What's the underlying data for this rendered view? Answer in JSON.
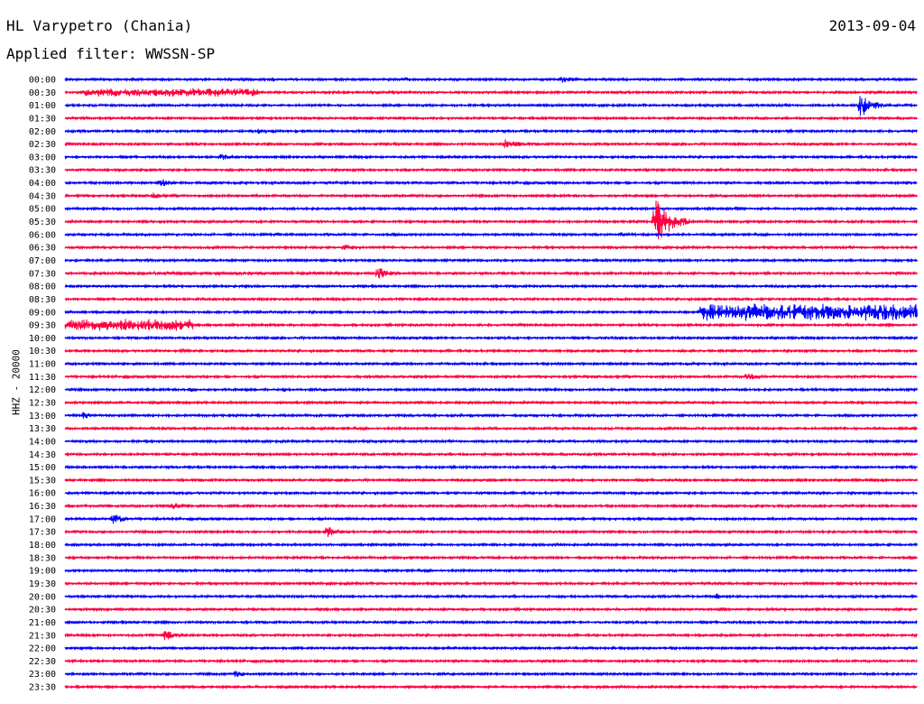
{
  "header": {
    "station": "HL Varypetro (Chania)",
    "date": "2013-09-04",
    "filter": "Applied filter: WWSSN-SP"
  },
  "axis": {
    "channel_label": "HHZ - 20000"
  },
  "colors": {
    "odd_trace": "#0000ff",
    "even_trace": "#ff0040",
    "background": "#ffffff",
    "text": "#000000"
  },
  "chart_data": {
    "type": "line",
    "chart_kind": "helicorder",
    "x_unit": "minutes within 30-minute row",
    "xlim": [
      0,
      30
    ],
    "row_labels": [
      "00:00",
      "00:30",
      "01:00",
      "01:30",
      "02:00",
      "02:30",
      "03:00",
      "03:30",
      "04:00",
      "04:30",
      "05:00",
      "05:30",
      "06:00",
      "06:30",
      "07:00",
      "07:30",
      "08:00",
      "08:30",
      "09:00",
      "09:30",
      "10:00",
      "10:30",
      "11:00",
      "11:30",
      "12:00",
      "12:30",
      "13:00",
      "13:30",
      "14:00",
      "14:30",
      "15:00",
      "15:30",
      "16:00",
      "16:30",
      "17:00",
      "17:30",
      "18:00",
      "18:30",
      "19:00",
      "19:30",
      "20:00",
      "20:30",
      "21:00",
      "21:30",
      "22:00",
      "22:30",
      "23:00",
      "23:30"
    ],
    "events": [
      {
        "row": "00:00",
        "minute": 12.0,
        "amp": 3,
        "dur": 0.6
      },
      {
        "row": "00:00",
        "minute": 17.5,
        "amp": 4,
        "dur": 1.2
      },
      {
        "row": "00:30",
        "minute": 0.8,
        "amp": 5,
        "dur": 6.0
      },
      {
        "row": "00:30",
        "minute": 11.5,
        "amp": 2,
        "dur": 0.8
      },
      {
        "row": "01:00",
        "minute": 28.0,
        "amp": 14,
        "dur": 1.0
      },
      {
        "row": "02:00",
        "minute": 6.8,
        "amp": 3,
        "dur": 1.0
      },
      {
        "row": "02:30",
        "minute": 15.5,
        "amp": 6,
        "dur": 1.2
      },
      {
        "row": "03:00",
        "minute": 5.5,
        "amp": 4,
        "dur": 0.8
      },
      {
        "row": "03:30",
        "minute": 20.5,
        "amp": 3,
        "dur": 0.5
      },
      {
        "row": "04:00",
        "minute": 3.4,
        "amp": 5,
        "dur": 0.8
      },
      {
        "row": "04:30",
        "minute": 3.1,
        "amp": 4,
        "dur": 0.8
      },
      {
        "row": "05:00",
        "minute": 23.7,
        "amp": 3,
        "dur": 0.6
      },
      {
        "row": "05:30",
        "minute": 20.8,
        "amp": 26,
        "dur": 1.2
      },
      {
        "row": "06:00",
        "minute": 19.6,
        "amp": 3,
        "dur": 0.8
      },
      {
        "row": "06:30",
        "minute": 9.8,
        "amp": 4,
        "dur": 1.2
      },
      {
        "row": "07:00",
        "minute": 9.5,
        "amp": 2,
        "dur": 0.8
      },
      {
        "row": "07:30",
        "minute": 11.0,
        "amp": 8,
        "dur": 0.9
      },
      {
        "row": "07:30",
        "minute": 1.0,
        "amp": 2,
        "dur": 9.0
      },
      {
        "row": "09:00",
        "minute": 22.5,
        "amp": 10,
        "dur": 7.5
      },
      {
        "row": "09:30",
        "minute": 0.0,
        "amp": 7,
        "dur": 4.5
      },
      {
        "row": "10:30",
        "minute": 4.1,
        "amp": 3,
        "dur": 0.8
      },
      {
        "row": "10:30",
        "minute": 24.2,
        "amp": 2,
        "dur": 0.6
      },
      {
        "row": "11:30",
        "minute": 24.0,
        "amp": 4,
        "dur": 1.6
      },
      {
        "row": "12:00",
        "minute": 4.4,
        "amp": 3,
        "dur": 0.8
      },
      {
        "row": "12:00",
        "minute": 7.7,
        "amp": 3,
        "dur": 0.4
      },
      {
        "row": "13:00",
        "minute": 0.6,
        "amp": 5,
        "dur": 0.8
      },
      {
        "row": "15:00",
        "minute": 17.2,
        "amp": 2,
        "dur": 0.4
      },
      {
        "row": "15:00",
        "minute": 25.5,
        "amp": 2,
        "dur": 0.6
      },
      {
        "row": "16:30",
        "minute": 3.8,
        "amp": 4,
        "dur": 1.2
      },
      {
        "row": "16:30",
        "minute": 6.5,
        "amp": 2,
        "dur": 0.6
      },
      {
        "row": "16:30",
        "minute": 22.0,
        "amp": 3,
        "dur": 0.3
      },
      {
        "row": "17:00",
        "minute": 1.7,
        "amp": 6,
        "dur": 0.9
      },
      {
        "row": "17:00",
        "minute": 18.0,
        "amp": 2,
        "dur": 0.8
      },
      {
        "row": "17:30",
        "minute": 9.2,
        "amp": 7,
        "dur": 1.0
      },
      {
        "row": "20:00",
        "minute": 22.9,
        "amp": 4,
        "dur": 0.6
      },
      {
        "row": "20:30",
        "minute": 23.1,
        "amp": 3,
        "dur": 0.6
      },
      {
        "row": "21:30",
        "minute": 3.5,
        "amp": 7,
        "dur": 0.8
      },
      {
        "row": "23:00",
        "minute": 6.0,
        "amp": 4,
        "dur": 1.0
      }
    ]
  }
}
